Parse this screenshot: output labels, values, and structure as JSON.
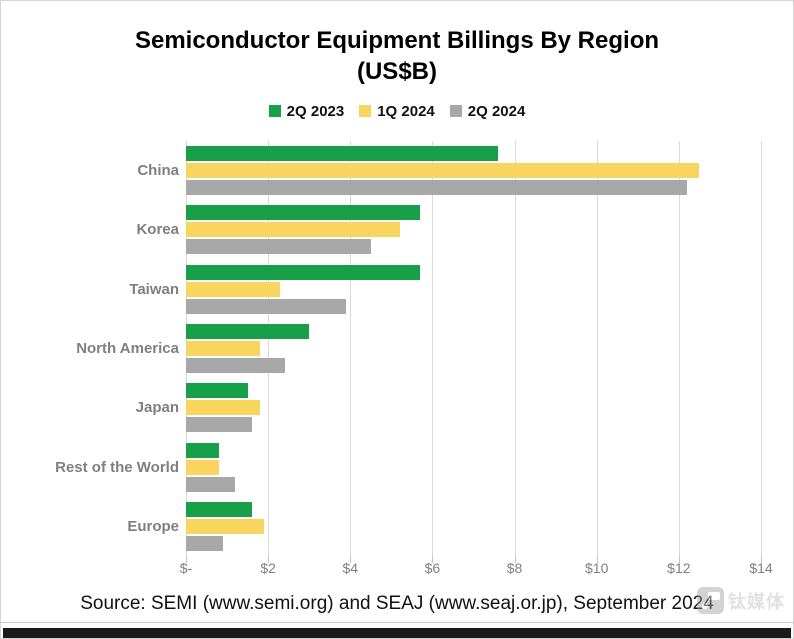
{
  "title": {
    "line1": "Semiconductor Equipment Billings By Region",
    "line2": "(US$B)"
  },
  "legend": {
    "items": [
      {
        "label": "2Q 2023",
        "color": "#18a048"
      },
      {
        "label": "1Q 2024",
        "color": "#f8d55e"
      },
      {
        "label": "2Q 2024",
        "color": "#a8a8a8"
      }
    ]
  },
  "chart_data": {
    "type": "bar",
    "orientation": "horizontal",
    "title": "Semiconductor Equipment Billings By Region (US$B)",
    "categories": [
      "China",
      "Korea",
      "Taiwan",
      "North America",
      "Japan",
      "Rest of the World",
      "Europe"
    ],
    "series": [
      {
        "name": "2Q 2023",
        "color": "#18a048",
        "values": [
          7.6,
          5.7,
          5.7,
          3.0,
          1.5,
          0.8,
          1.6
        ]
      },
      {
        "name": "1Q 2024",
        "color": "#f8d55e",
        "values": [
          12.5,
          5.2,
          2.3,
          1.8,
          1.8,
          0.8,
          1.9
        ]
      },
      {
        "name": "2Q 2024",
        "color": "#a8a8a8",
        "values": [
          12.2,
          4.5,
          3.9,
          2.4,
          1.6,
          1.2,
          0.9
        ]
      }
    ],
    "xlim": [
      0,
      14
    ],
    "x_ticks": [
      0,
      2,
      4,
      6,
      8,
      10,
      12,
      14
    ],
    "x_tick_labels": [
      "$-",
      "$2",
      "$4",
      "$6",
      "$8",
      "$10",
      "$12",
      "$14"
    ],
    "grid": "vertical",
    "legend_position": "top",
    "units": "US$B"
  },
  "source_text": "Source: SEMI (www.semi.org) and SEAJ (www.seaj.or.jp), September 2024",
  "watermark": {
    "text": "钛媒体"
  }
}
